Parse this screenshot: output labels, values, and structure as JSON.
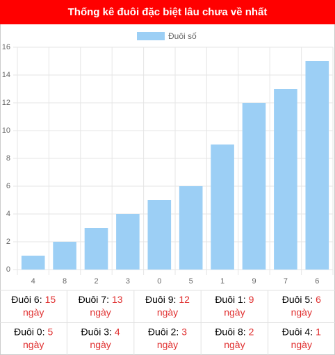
{
  "header": {
    "title": "Thống kê đuôi đặc biệt lâu chưa về nhất"
  },
  "chart_data": {
    "type": "bar",
    "series": [
      {
        "name": "Đuôi số",
        "color": "#9ccff5",
        "values": [
          1,
          2,
          3,
          4,
          5,
          6,
          9,
          12,
          13,
          15
        ]
      }
    ],
    "categories": [
      "4",
      "8",
      "2",
      "3",
      "0",
      "5",
      "1",
      "9",
      "7",
      "6"
    ],
    "ylim": [
      0,
      16
    ],
    "yticks": [
      0,
      2,
      4,
      6,
      8,
      10,
      12,
      14,
      16
    ],
    "grid": true,
    "legend": "top"
  },
  "table": {
    "rows": [
      [
        {
          "label": "Đuôi 6:",
          "value": 15,
          "unit": "ngày"
        },
        {
          "label": "Đuôi 7:",
          "value": 13,
          "unit": "ngày"
        },
        {
          "label": "Đuôi 9:",
          "value": 12,
          "unit": "ngày"
        },
        {
          "label": "Đuôi 1:",
          "value": 9,
          "unit": "ngày"
        },
        {
          "label": "Đuôi 5:",
          "value": 6,
          "unit": "ngày"
        }
      ],
      [
        {
          "label": "Đuôi 0:",
          "value": 5,
          "unit": "ngày"
        },
        {
          "label": "Đuôi 3:",
          "value": 4,
          "unit": "ngày"
        },
        {
          "label": "Đuôi 2:",
          "value": 3,
          "unit": "ngày"
        },
        {
          "label": "Đuôi 8:",
          "value": 2,
          "unit": "ngày"
        },
        {
          "label": "Đuôi 4:",
          "value": 1,
          "unit": "ngày"
        }
      ]
    ]
  }
}
